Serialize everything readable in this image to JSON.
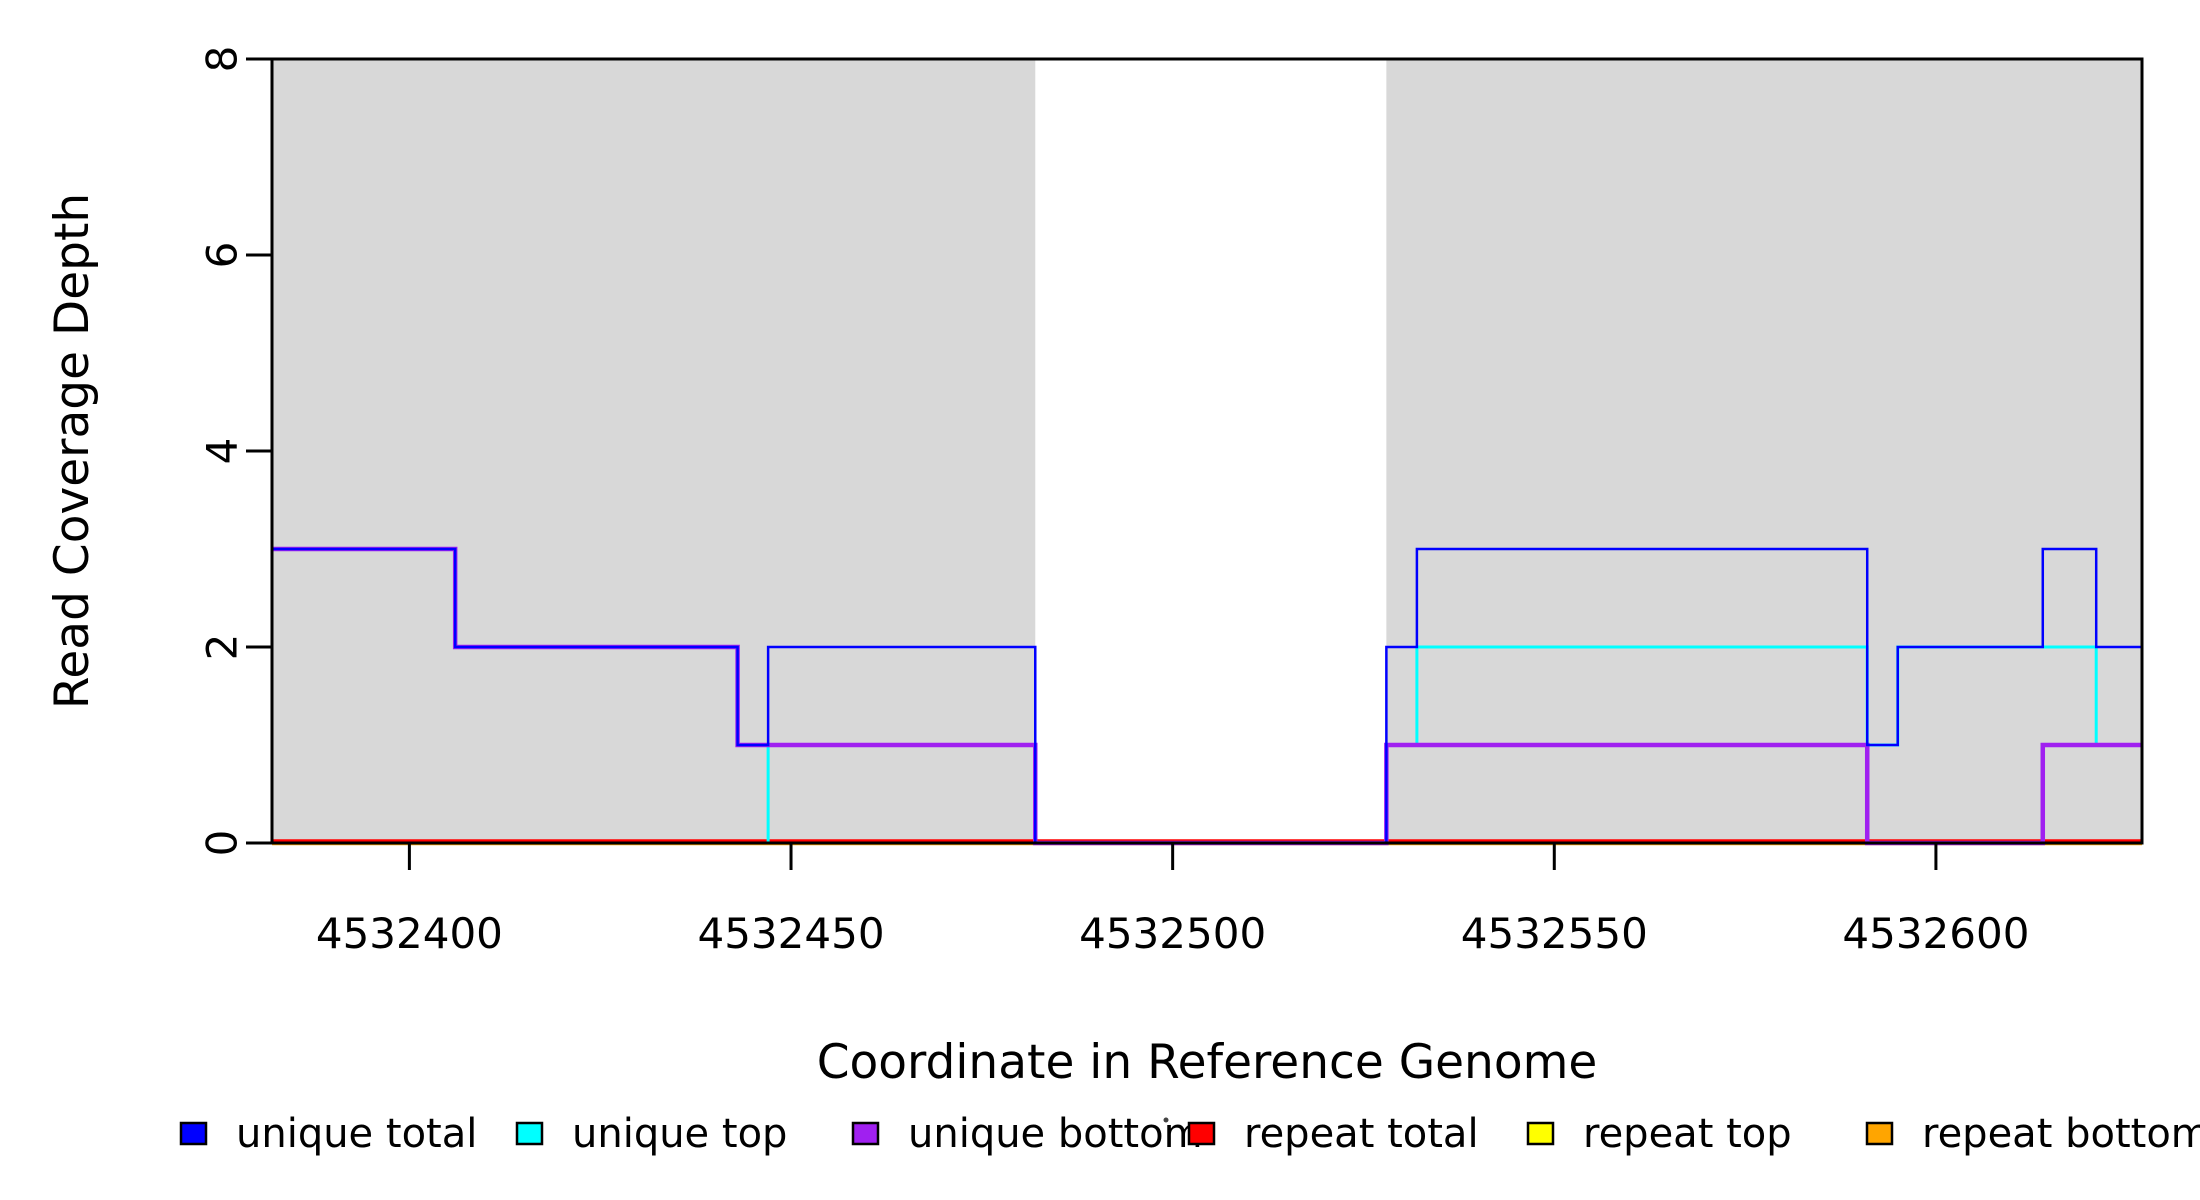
{
  "chart_data": {
    "type": "step-line",
    "xlabel": "Coordinate in Reference Genome",
    "ylabel": "Read Coverage Depth",
    "xlim": [
      4532382,
      4532627
    ],
    "ylim": [
      0,
      8
    ],
    "x_ticks": [
      4532400,
      4532450,
      4532500,
      4532550,
      4532600
    ],
    "x_tick_labels": [
      "4532400",
      "4532450",
      "4532500",
      "4532550",
      "4532600"
    ],
    "y_ticks": [
      0,
      2,
      4,
      6,
      8
    ],
    "y_tick_labels": [
      "0",
      "2",
      "4",
      "6",
      "8"
    ],
    "grid": "off",
    "legend_position": "bottom",
    "shade_color": "#D8D8D8",
    "shaded_regions": [
      {
        "from": 4532382,
        "to": 4532482
      },
      {
        "from": 4532528,
        "to": 4532627
      }
    ],
    "series": [
      {
        "name": "unique total",
        "color": "#0000FF",
        "steps": [
          [
            4532382,
            3
          ],
          [
            4532406,
            2
          ],
          [
            4532443,
            1
          ],
          [
            4532447,
            2
          ],
          [
            4532482,
            0
          ],
          [
            4532528,
            2
          ],
          [
            4532532,
            3
          ],
          [
            4532591,
            1
          ],
          [
            4532595,
            2
          ],
          [
            4532614,
            3
          ],
          [
            4532621,
            2
          ]
        ]
      },
      {
        "name": "unique top",
        "color": "#00FFFF",
        "steps": [
          [
            4532382,
            0
          ],
          [
            4532447,
            1
          ],
          [
            4532482,
            0
          ],
          [
            4532528,
            1
          ],
          [
            4532532,
            2
          ],
          [
            4532591,
            1
          ],
          [
            4532595,
            2
          ],
          [
            4532621,
            1
          ]
        ]
      },
      {
        "name": "unique bottom",
        "color": "#A020F0",
        "steps": [
          [
            4532382,
            3
          ],
          [
            4532406,
            2
          ],
          [
            4532443,
            1
          ],
          [
            4532482,
            0
          ],
          [
            4532528,
            1
          ],
          [
            4532591,
            0
          ],
          [
            4532614,
            1
          ]
        ]
      },
      {
        "name": "repeat total",
        "color": "#FF0000",
        "steps": [
          [
            4532382,
            0
          ]
        ]
      },
      {
        "name": "repeat top",
        "color": "#FFFF00",
        "steps": [
          [
            4532382,
            0
          ]
        ]
      },
      {
        "name": "repeat bottom",
        "color": "#FFA500",
        "steps": [
          [
            4532382,
            0
          ]
        ]
      }
    ]
  }
}
